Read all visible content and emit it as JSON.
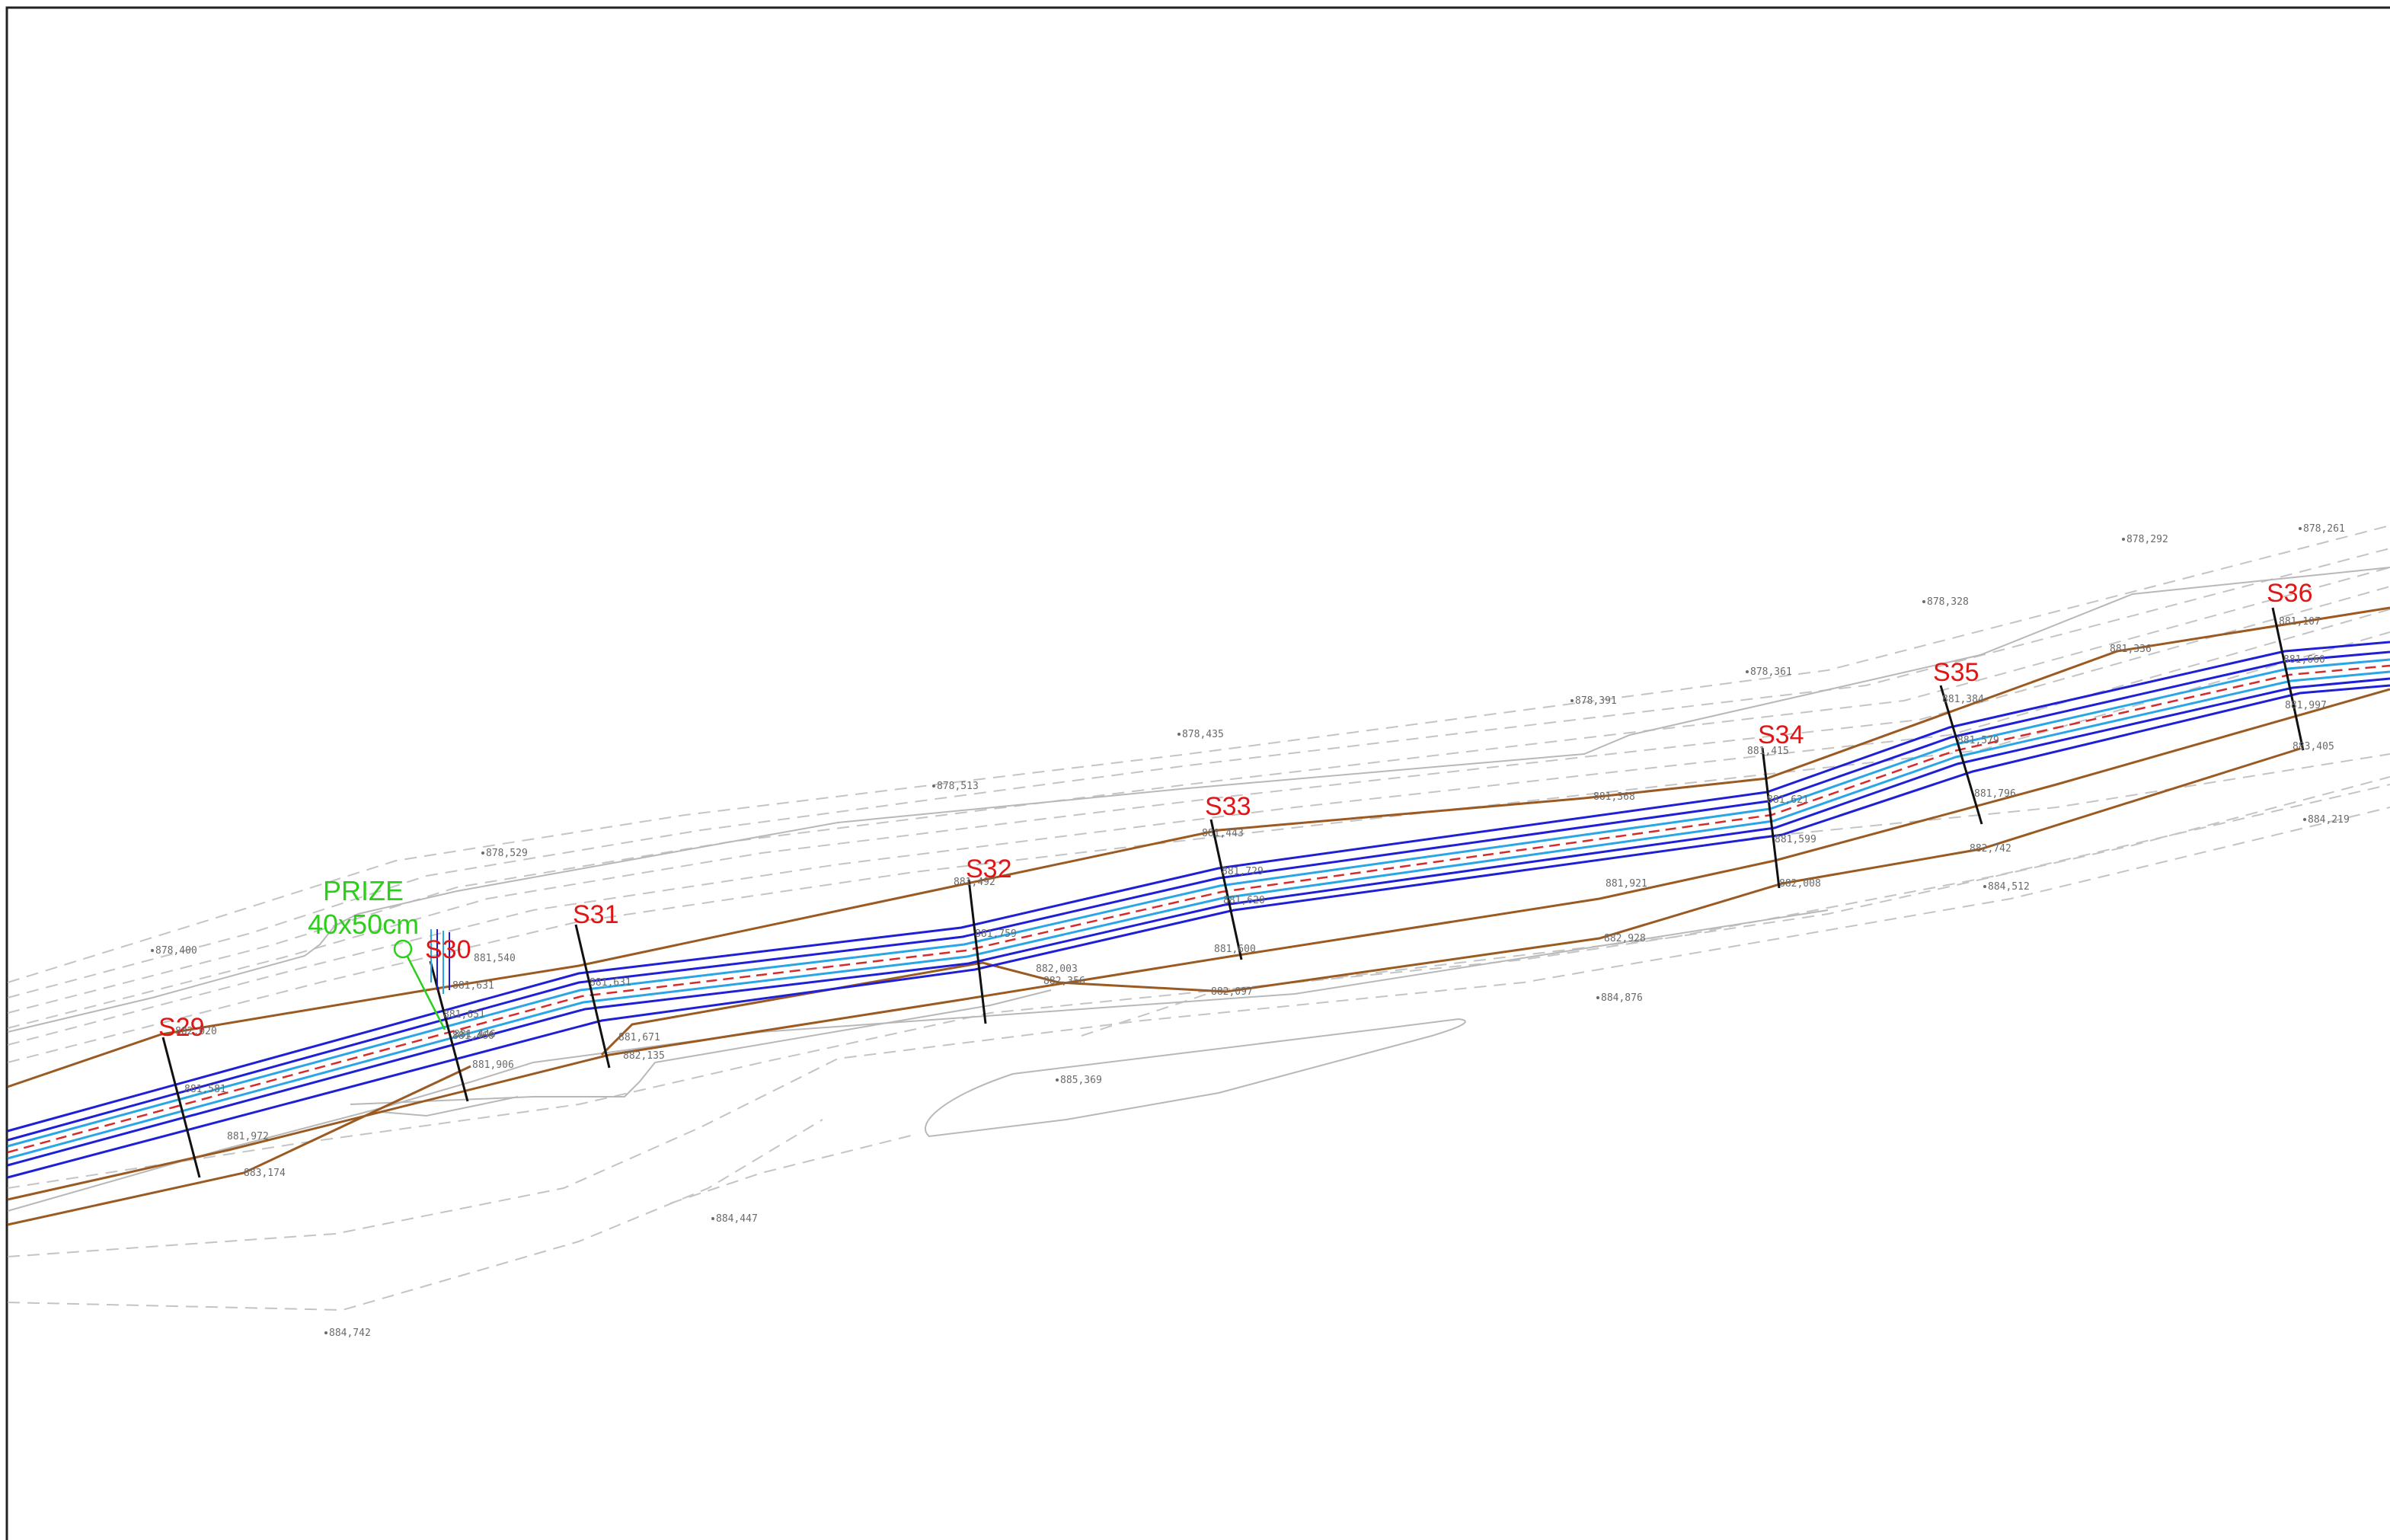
{
  "drawing": {
    "colors": {
      "section_label": "#e01616",
      "carriageway_edge": "#1f1fd6",
      "lane_edge": "#2aa6e6",
      "axis": "#d72b2b",
      "fence": "#9a5a22",
      "contour": "#c4c4c4",
      "annotation": "#2bcf1a"
    },
    "sections": [
      "S29",
      "S30",
      "S31",
      "S32",
      "S33",
      "S34",
      "S35",
      "S36"
    ],
    "annotation": {
      "line1": "PRIZE",
      "line2": "40x50cm"
    },
    "elevations": [
      "878,400",
      "878,529",
      "878,513",
      "878,435",
      "878,391",
      "878,361",
      "878,328",
      "878,292",
      "878,261",
      "881,107",
      "881,336",
      "881,384",
      "881,415",
      "881,368",
      "881,443",
      "881,492",
      "881,540",
      "882,020",
      "881,906",
      "881,972",
      "883,174",
      "881,671",
      "882,135",
      "881,600",
      "882,097",
      "882,003",
      "882,356",
      "881,921",
      "882,928",
      "882,008",
      "882,742",
      "881,796",
      "881,599",
      "884,512",
      "884,219",
      "883,405",
      "881,997",
      "885,369",
      "884,876",
      "884,447",
      "884,742",
      "881,631",
      "881,446",
      "881,581",
      "881,631",
      "881,729",
      "881,759",
      "881,621",
      "881,579",
      "881,660",
      "881,651",
      "881,460",
      "881,620"
    ]
  }
}
